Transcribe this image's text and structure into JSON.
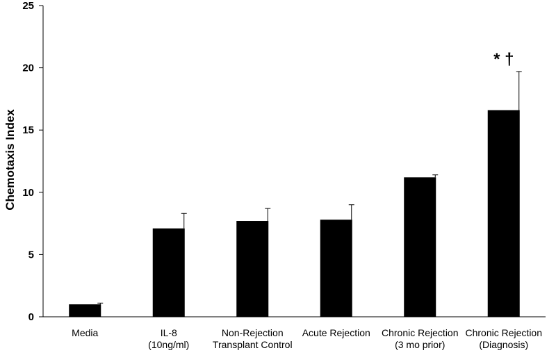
{
  "chart_data": {
    "type": "bar",
    "title": "",
    "xlabel": "",
    "ylabel": "Chemotaxis Index",
    "ylim": [
      0,
      25
    ],
    "yticks": [
      0,
      5,
      10,
      15,
      20,
      25
    ],
    "grid": false,
    "legend": "none",
    "bar_color": "#000000",
    "categories": [
      [
        "Media"
      ],
      [
        "IL-8",
        "(10ng/ml)"
      ],
      [
        "Non-Rejection",
        "Transplant Control"
      ],
      [
        "Acute Rejection"
      ],
      [
        "Chronic Rejection",
        "(3 mo prior)"
      ],
      [
        "Chronic Rejection",
        "(Diagnosis)"
      ]
    ],
    "values": [
      1.0,
      7.1,
      7.7,
      7.8,
      11.2,
      16.6
    ],
    "errors": [
      0.1,
      1.2,
      1.0,
      1.2,
      0.2,
      3.1
    ],
    "annotations": [
      {
        "category_index": 5,
        "text": "* †"
      }
    ]
  }
}
